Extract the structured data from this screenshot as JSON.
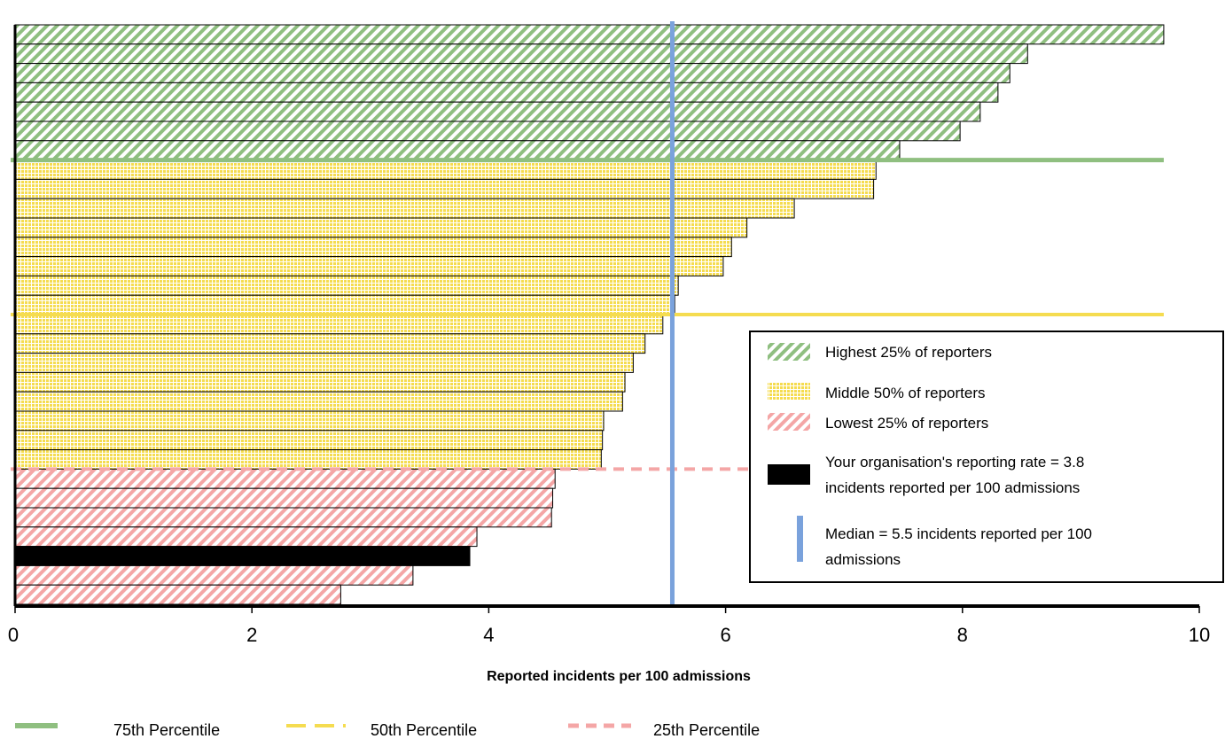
{
  "chart_data": {
    "type": "bar",
    "orientation": "horizontal",
    "xlabel": "Reported incidents per 100 admissions",
    "xlim": [
      0,
      10
    ],
    "x_ticks": [
      "0",
      "2",
      "4",
      "6",
      "8",
      "10"
    ],
    "grid": false,
    "groups": [
      {
        "name": "Highest 25% of reporters",
        "color": "#8fbf80",
        "pattern": "diagonal-stripes",
        "values": [
          9.7,
          8.55,
          8.4,
          8.3,
          8.15,
          7.98,
          7.47
        ]
      },
      {
        "name": "Middle 50% of reporters",
        "color": "#f5dc50",
        "pattern": "grid",
        "values": [
          7.27,
          7.25,
          6.58,
          6.18,
          6.05,
          5.98,
          5.6,
          5.57,
          5.47,
          5.32,
          5.22,
          5.15,
          5.13,
          4.97,
          4.96,
          4.95
        ]
      },
      {
        "name": "Lowest 25% of reporters",
        "color": "#f4a6a6",
        "pattern": "diagonal-stripes",
        "values": [
          4.56,
          4.54,
          4.53,
          3.9,
          3.84,
          3.36,
          2.75
        ]
      }
    ],
    "highlight": {
      "label": "Your organisation's reporting rate = 3.8 incidents reported per 100 admissions",
      "value": 3.84,
      "color": "#000000"
    },
    "median": {
      "label": "Median = 5.5 incidents reported per 100 admissions",
      "value": 5.55,
      "color": "#7aa2dc"
    },
    "percentiles": [
      {
        "name": "75th Percentile",
        "color": "#8fbf80",
        "style": "solid"
      },
      {
        "name": "50th Percentile",
        "color": "#f5dc50",
        "style": "dashed"
      },
      {
        "name": "25th Percentile",
        "color": "#f4a6a6",
        "style": "dotted"
      }
    ],
    "legend_placement": "right-inside"
  },
  "legend": {
    "highest": "Highest 25% of reporters",
    "middle": "Middle 50% of reporters",
    "lowest": "Lowest 25% of reporters",
    "org_line1": "Your organisation's reporting rate = 3.8",
    "org_line2": "incidents reported per 100 admissions",
    "median_line1": "Median = 5.5 incidents reported per 100",
    "median_line2": "admissions"
  },
  "bottom_legend": {
    "p75": "75th Percentile",
    "p50": "50th Percentile",
    "p25": "25th Percentile"
  }
}
